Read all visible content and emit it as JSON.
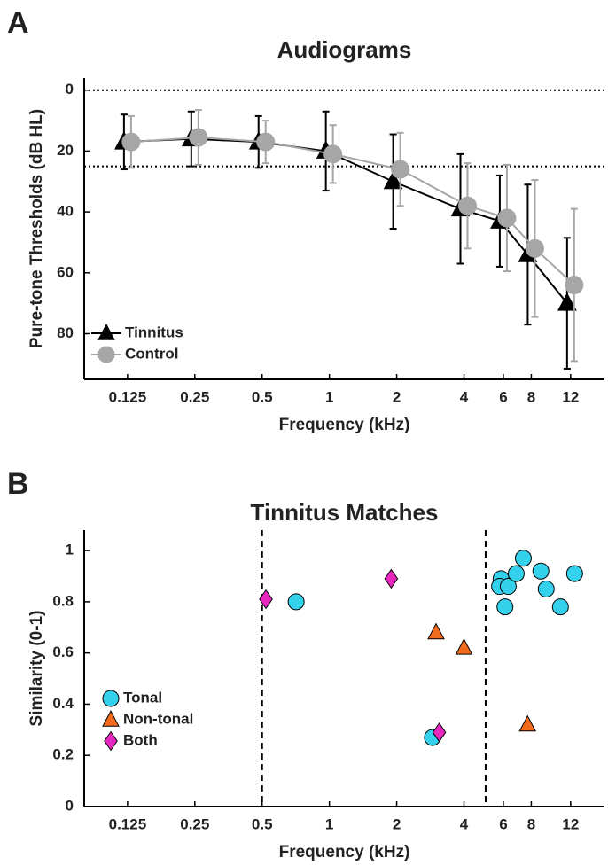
{
  "chart_data": [
    {
      "type": "line",
      "panel_label": "A",
      "title": "Audiograms",
      "x_label": "Frequency (kHz)",
      "y_label": "Pure-tone Thresholds (dB HL)",
      "x": [
        0.125,
        0.25,
        0.5,
        1,
        2,
        4,
        6,
        8,
        12
      ],
      "series": [
        {
          "name": "Tinnitus",
          "color": "#000000",
          "marker": "triangle",
          "values": [
            17,
            16,
            17,
            20,
            30,
            39,
            43,
            54,
            70
          ],
          "errors": [
            9,
            9,
            8.5,
            13,
            15.5,
            18,
            15,
            23,
            21.5
          ]
        },
        {
          "name": "Control",
          "color": "#a6a6a6",
          "marker": "circle",
          "values": [
            17,
            15.5,
            17,
            21,
            26,
            38,
            42,
            52,
            64
          ],
          "errors": [
            8.5,
            9,
            7,
            9.5,
            12,
            14,
            17.5,
            22.5,
            25
          ]
        }
      ],
      "x_log": true,
      "xlim": [
        0.08,
        17
      ],
      "xticks": [
        0.125,
        0.25,
        0.5,
        1,
        2,
        4,
        6,
        8,
        12
      ],
      "ylim": [
        95,
        -4
      ],
      "yticks": [
        0,
        20,
        40,
        60,
        80
      ],
      "y_reference_lines": [
        0,
        25
      ],
      "legend": "lower left"
    },
    {
      "type": "scatter",
      "panel_label": "B",
      "title": "Tinnitus Matches",
      "x_label": "Frequency (kHz)",
      "y_label": "Similarity (0-1)",
      "series": [
        {
          "name": "Tonal",
          "color": "#33d1ec",
          "marker": "circle",
          "x": [
            0.71,
            2.89,
            5.86,
            5.77,
            6.31,
            6.1,
            6.85,
            7.37,
            8.83,
            9.33,
            10.8,
            12.5
          ],
          "values": [
            0.8,
            0.27,
            0.89,
            0.86,
            0.86,
            0.78,
            0.91,
            0.97,
            0.92,
            0.85,
            0.78,
            0.91
          ]
        },
        {
          "name": "Non-tonal",
          "color": "#f26b1d",
          "marker": "triangle",
          "x": [
            3.0,
            4.0,
            7.7
          ],
          "values": [
            0.68,
            0.62,
            0.32
          ]
        },
        {
          "name": "Both",
          "color": "#e827c0",
          "marker": "diamond",
          "x": [
            0.52,
            1.89,
            3.1
          ],
          "values": [
            0.81,
            0.89,
            0.29
          ]
        }
      ],
      "x_log": true,
      "xlim": [
        0.08,
        17
      ],
      "xticks": [
        0.125,
        0.25,
        0.5,
        1,
        2,
        4,
        6,
        8,
        12
      ],
      "ylim": [
        0,
        1.08
      ],
      "yticks": [
        0,
        0.2,
        0.4,
        0.6,
        0.8,
        1
      ],
      "x_reference_lines": [
        0.5,
        5
      ],
      "legend": "lower left"
    }
  ]
}
